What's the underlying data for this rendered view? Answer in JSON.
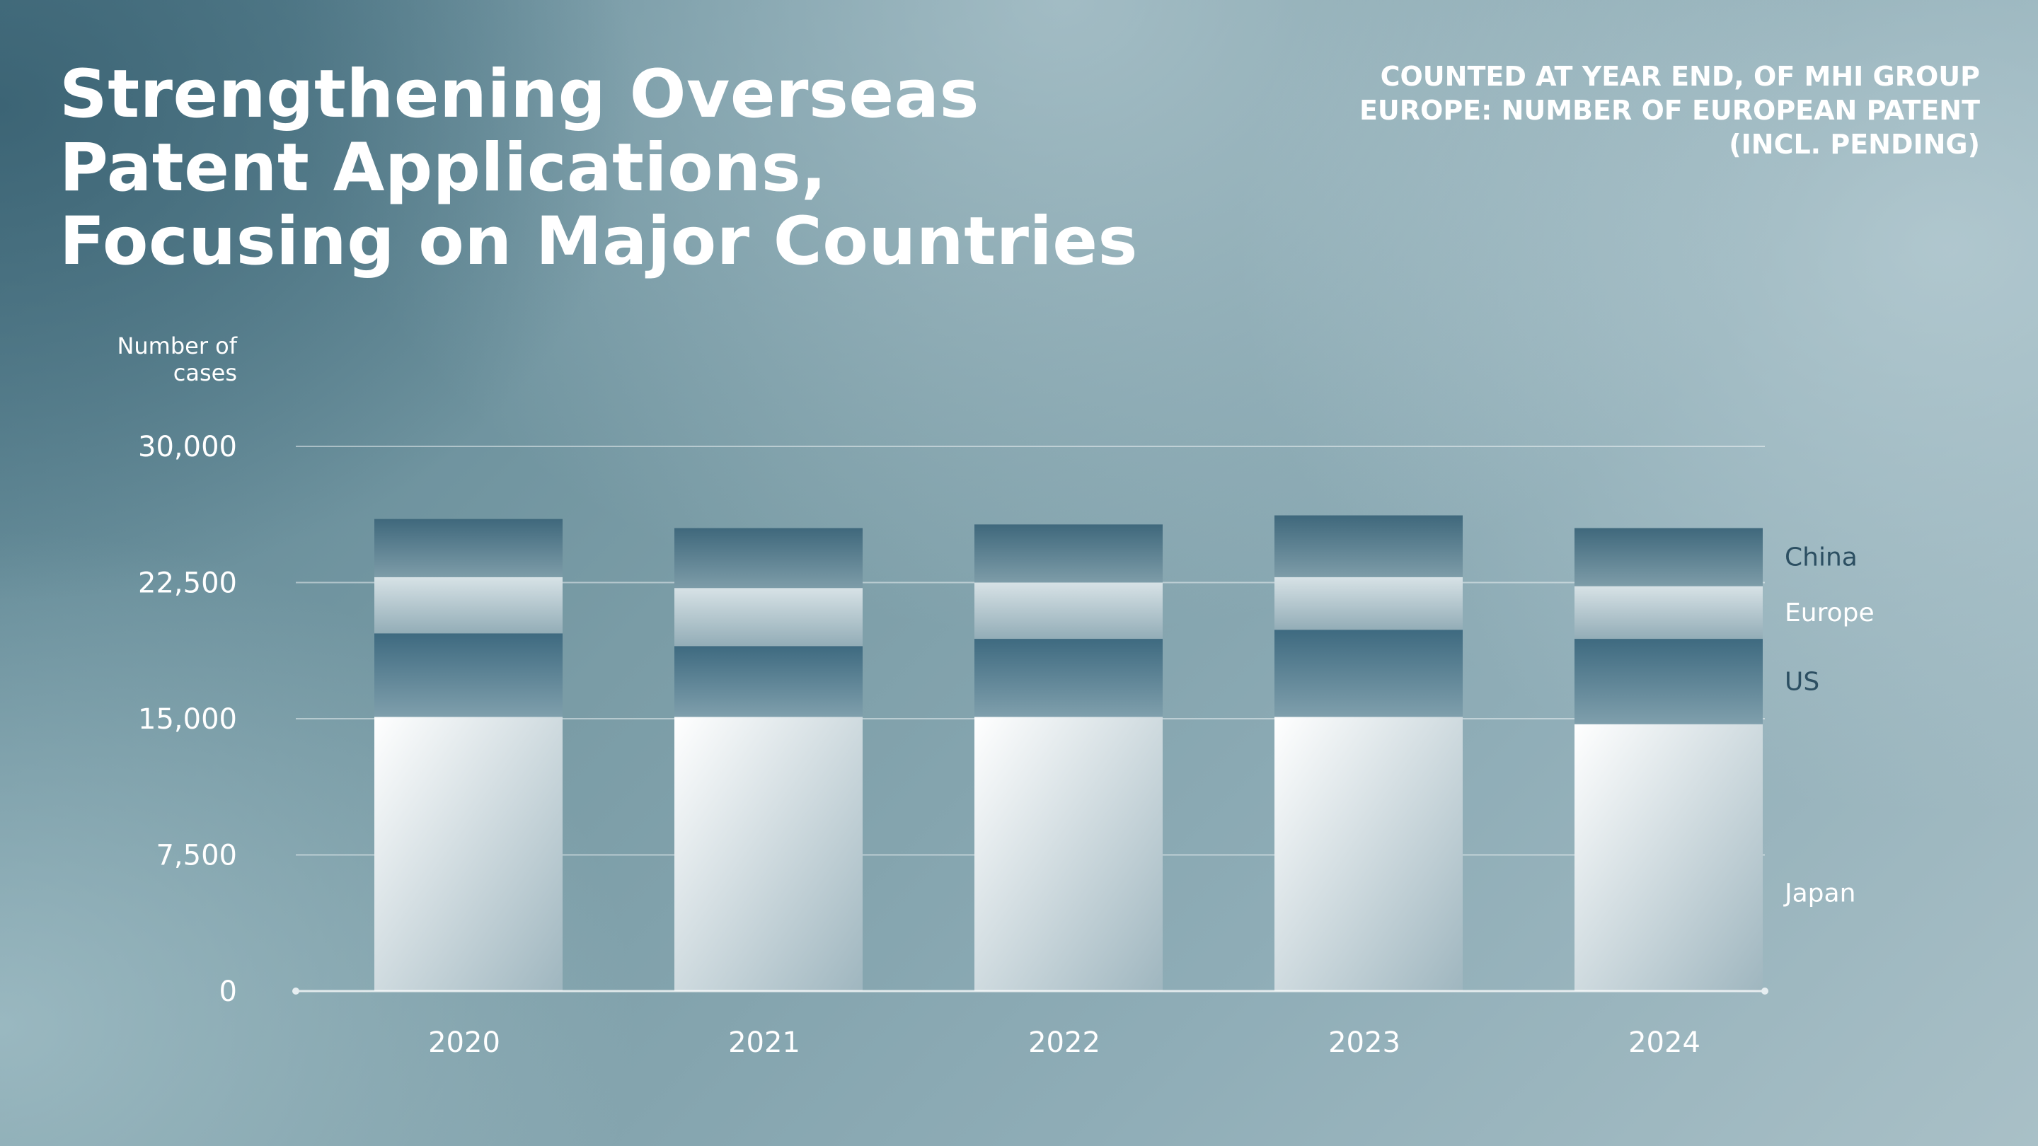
{
  "title": "Strengthening Overseas\nPatent Applications,\nFocusing on Major Countries",
  "note": "COUNTED AT YEAR END, OF MHI GROUP\nEUROPE: NUMBER OF EUROPEAN PATENT\n(INCL. PENDING)",
  "colors": {
    "japan_top": "#ffffff",
    "japan_bottom": "#9fb6bf",
    "us_top": "#3e6a80",
    "us_bottom": "#7f9fac",
    "europe_top": "#d7e2e6",
    "europe_bottom": "#93adb7",
    "china_top": "#3f687c",
    "china_bottom": "#7d9ca8",
    "label_dark": "#2c4f62",
    "label_light": "#ffffff"
  },
  "chart_data": {
    "type": "bar",
    "stacked": true,
    "ylabel": "Number of\ncases",
    "ylim": [
      0,
      30000
    ],
    "yticks": [
      0,
      7500,
      15000,
      22500,
      30000
    ],
    "ytick_labels": [
      "0",
      "7,500",
      "15,000",
      "22,500",
      "30,000"
    ],
    "grid": true,
    "legend": "right, inline labels",
    "categories": [
      "2020",
      "2021",
      "2022",
      "2023",
      "2024"
    ],
    "series": [
      {
        "name": "Japan",
        "values": [
          15100,
          15100,
          15100,
          15100,
          14700
        ]
      },
      {
        "name": "US",
        "values": [
          4600,
          3900,
          4300,
          4800,
          4700
        ]
      },
      {
        "name": "Europe",
        "values": [
          3100,
          3200,
          3100,
          2900,
          2900
        ]
      },
      {
        "name": "China",
        "values": [
          3200,
          3300,
          3200,
          3400,
          3200
        ]
      }
    ]
  }
}
